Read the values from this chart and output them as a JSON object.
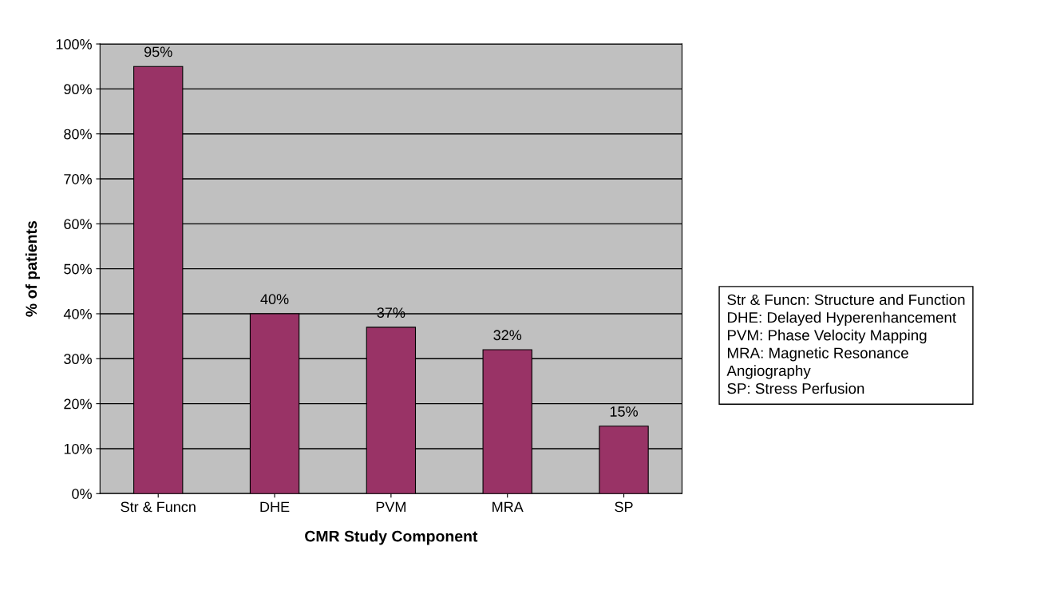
{
  "chart_data": {
    "type": "bar",
    "categories": [
      "Str & Funcn",
      "DHE",
      "PVM",
      "MRA",
      "SP"
    ],
    "values": [
      95,
      40,
      37,
      32,
      15
    ],
    "value_labels": [
      "95%",
      "40%",
      "37%",
      "32%",
      "15%"
    ],
    "color": "#993366",
    "xlabel": "CMR Study Component",
    "ylabel": "% of patients",
    "ylim": [
      0,
      100
    ],
    "yticks": [
      {
        "value": 0,
        "label": "0%"
      },
      {
        "value": 10,
        "label": "10%"
      },
      {
        "value": 20,
        "label": "20%"
      },
      {
        "value": 30,
        "label": "30%"
      },
      {
        "value": 40,
        "label": "40%"
      },
      {
        "value": 50,
        "label": "50%"
      },
      {
        "value": 60,
        "label": "60%"
      },
      {
        "value": 70,
        "label": "70%"
      },
      {
        "value": 80,
        "label": "80%"
      },
      {
        "value": 90,
        "label": "90%"
      },
      {
        "value": 100,
        "label": "100%"
      }
    ],
    "grid": "y",
    "annotations": [
      "Str & Funcn: Structure and Function\nDHE: Delayed Hyperenhancement\nPVM: Phase Velocity Mapping\nMRA: Magnetic Resonance\nAngiography\nSP: Stress Perfusion"
    ]
  }
}
